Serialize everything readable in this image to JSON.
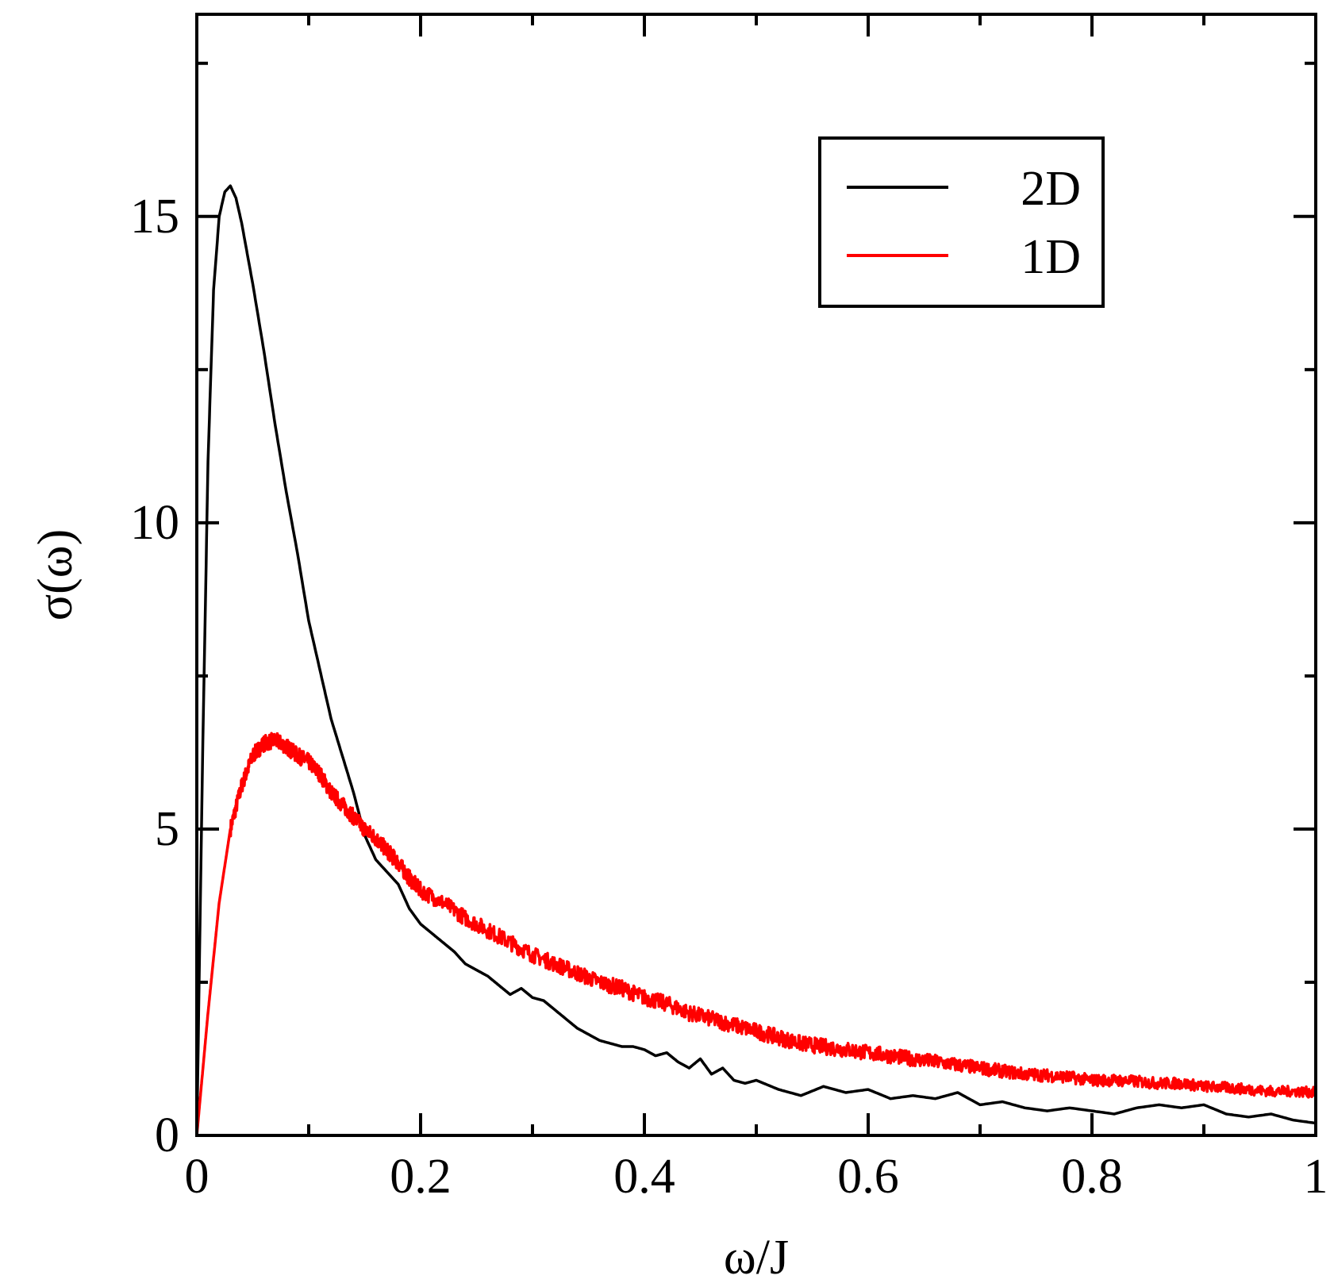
{
  "chart_data": {
    "type": "line",
    "title": "",
    "xlabel": "ω/J",
    "ylabel": "σ(ω)",
    "xlim": [
      0,
      1
    ],
    "ylim": [
      0,
      18.3
    ],
    "xticks": [
      0,
      0.2,
      0.4,
      0.6,
      0.8,
      1
    ],
    "xtick_labels": [
      "0",
      "0.2",
      "0.4",
      "0.6",
      "0.8",
      "1"
    ],
    "yticks": [
      0,
      5,
      10,
      15
    ],
    "ytick_labels": [
      "0",
      "5",
      "10",
      "15"
    ],
    "grid": false,
    "legend_position": "top-right",
    "series": [
      {
        "name": "2D",
        "color": "#000000",
        "noise": 0,
        "x": [
          0,
          0.005,
          0.01,
          0.015,
          0.02,
          0.025,
          0.03,
          0.035,
          0.04,
          0.045,
          0.05,
          0.06,
          0.07,
          0.08,
          0.09,
          0.1,
          0.11,
          0.12,
          0.13,
          0.14,
          0.15,
          0.16,
          0.17,
          0.18,
          0.19,
          0.2,
          0.21,
          0.22,
          0.23,
          0.24,
          0.25,
          0.26,
          0.27,
          0.28,
          0.29,
          0.3,
          0.31,
          0.32,
          0.33,
          0.34,
          0.35,
          0.36,
          0.37,
          0.38,
          0.39,
          0.4,
          0.41,
          0.42,
          0.43,
          0.44,
          0.45,
          0.46,
          0.47,
          0.48,
          0.49,
          0.5,
          0.52,
          0.54,
          0.56,
          0.58,
          0.6,
          0.62,
          0.64,
          0.66,
          0.68,
          0.7,
          0.72,
          0.74,
          0.76,
          0.78,
          0.8,
          0.82,
          0.84,
          0.86,
          0.88,
          0.9,
          0.92,
          0.94,
          0.96,
          0.98,
          1.0
        ],
        "y": [
          0,
          6.0,
          11.0,
          13.8,
          15.0,
          15.4,
          15.5,
          15.3,
          14.9,
          14.4,
          13.9,
          12.8,
          11.6,
          10.5,
          9.5,
          8.4,
          7.6,
          6.8,
          6.2,
          5.6,
          4.9,
          4.5,
          4.3,
          4.1,
          3.7,
          3.45,
          3.3,
          3.15,
          3.0,
          2.8,
          2.7,
          2.6,
          2.45,
          2.3,
          2.4,
          2.25,
          2.2,
          2.05,
          1.9,
          1.75,
          1.65,
          1.55,
          1.5,
          1.45,
          1.45,
          1.4,
          1.3,
          1.35,
          1.2,
          1.1,
          1.25,
          1.0,
          1.1,
          0.9,
          0.85,
          0.9,
          0.75,
          0.65,
          0.8,
          0.7,
          0.75,
          0.6,
          0.65,
          0.6,
          0.7,
          0.5,
          0.55,
          0.45,
          0.4,
          0.45,
          0.4,
          0.35,
          0.45,
          0.5,
          0.45,
          0.5,
          0.35,
          0.3,
          0.35,
          0.25,
          0.2
        ]
      },
      {
        "name": "1D",
        "color": "#ff0000",
        "noise": 0.13,
        "x": [
          0,
          0.01,
          0.02,
          0.03,
          0.04,
          0.05,
          0.06,
          0.07,
          0.08,
          0.09,
          0.1,
          0.11,
          0.12,
          0.13,
          0.14,
          0.15,
          0.16,
          0.17,
          0.18,
          0.19,
          0.2,
          0.22,
          0.24,
          0.26,
          0.28,
          0.3,
          0.32,
          0.34,
          0.36,
          0.38,
          0.4,
          0.42,
          0.44,
          0.46,
          0.48,
          0.5,
          0.52,
          0.54,
          0.56,
          0.58,
          0.6,
          0.62,
          0.64,
          0.66,
          0.68,
          0.7,
          0.72,
          0.74,
          0.76,
          0.78,
          0.8,
          0.82,
          0.84,
          0.86,
          0.88,
          0.9,
          0.92,
          0.94,
          0.96,
          0.98,
          1.0
        ],
        "y": [
          0,
          2.0,
          3.8,
          5.0,
          5.7,
          6.2,
          6.4,
          6.45,
          6.35,
          6.2,
          6.1,
          5.9,
          5.6,
          5.4,
          5.2,
          5.0,
          4.85,
          4.65,
          4.45,
          4.2,
          4.0,
          3.8,
          3.55,
          3.35,
          3.15,
          2.95,
          2.8,
          2.65,
          2.5,
          2.4,
          2.25,
          2.15,
          2.0,
          1.9,
          1.8,
          1.7,
          1.6,
          1.5,
          1.45,
          1.4,
          1.35,
          1.3,
          1.25,
          1.2,
          1.15,
          1.1,
          1.05,
          1.0,
          0.98,
          0.95,
          0.9,
          0.9,
          0.88,
          0.85,
          0.85,
          0.8,
          0.78,
          0.75,
          0.72,
          0.72,
          0.7
        ]
      }
    ]
  }
}
